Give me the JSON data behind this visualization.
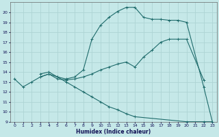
{
  "xlabel": "Humidex (Indice chaleur)",
  "bg_color": "#c5e8e8",
  "grid_color": "#aed4d4",
  "line_color": "#1e6b6b",
  "xlim": [
    -0.5,
    23.5
  ],
  "ylim": [
    9,
    21
  ],
  "xticks": [
    0,
    1,
    2,
    3,
    4,
    5,
    6,
    7,
    8,
    9,
    10,
    11,
    12,
    13,
    14,
    15,
    16,
    17,
    18,
    19,
    20,
    21,
    22,
    23
  ],
  "yticks": [
    9,
    10,
    11,
    12,
    13,
    14,
    15,
    16,
    17,
    18,
    19,
    20
  ],
  "line1_x": [
    0,
    1,
    2,
    3,
    4,
    5,
    6,
    7,
    8,
    9,
    10,
    11,
    12,
    13,
    14,
    15,
    16,
    17,
    18,
    19,
    20,
    22,
    23
  ],
  "line1_y": [
    13.3,
    12.5,
    13.0,
    13.5,
    13.8,
    13.5,
    13.3,
    13.5,
    14.2,
    17.3,
    18.7,
    19.5,
    20.1,
    20.5,
    20.5,
    19.5,
    19.3,
    19.3,
    19.2,
    19.2,
    19.0,
    12.5,
    9.0
  ],
  "line2_x": [
    3,
    4,
    5,
    6,
    7,
    8,
    9,
    10,
    11,
    12,
    13,
    14,
    15,
    16,
    17,
    18,
    19,
    20,
    22
  ],
  "line2_y": [
    13.5,
    13.8,
    13.3,
    13.2,
    13.3,
    13.5,
    13.8,
    14.2,
    14.5,
    14.8,
    15.0,
    14.5,
    15.5,
    16.2,
    17.0,
    17.3,
    17.3,
    17.3,
    13.2
  ],
  "line3_x": [
    3,
    4,
    5,
    6,
    7,
    8,
    9,
    10,
    11,
    12,
    13,
    14,
    20,
    22,
    23
  ],
  "line3_y": [
    13.8,
    14.0,
    13.5,
    13.0,
    12.5,
    12.0,
    11.5,
    11.0,
    10.5,
    10.2,
    9.8,
    9.5,
    9.0,
    9.0,
    9.0
  ]
}
